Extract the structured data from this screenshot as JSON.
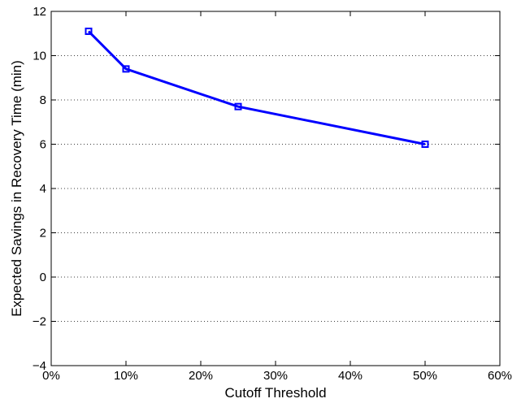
{
  "chart_data": {
    "type": "line",
    "title": "",
    "xlabel": "Cutoff Threshold",
    "ylabel": "Expected Savings in Recovery Time (min)",
    "xlim": [
      0,
      60
    ],
    "ylim": [
      -4,
      12
    ],
    "x_ticks": [
      0,
      10,
      20,
      30,
      40,
      50,
      60
    ],
    "x_tick_labels": [
      "0%",
      "10%",
      "20%",
      "30%",
      "40%",
      "50%",
      "60%"
    ],
    "y_ticks": [
      -4,
      -2,
      0,
      2,
      4,
      6,
      8,
      10,
      12
    ],
    "y_tick_labels": [
      "−4",
      "−2",
      "0",
      "2",
      "4",
      "6",
      "8",
      "10",
      "12"
    ],
    "grid": "horizontal-dotted",
    "series": [
      {
        "x": [
          5,
          10,
          25,
          50
        ],
        "y": [
          11.1,
          9.4,
          7.7,
          6.0
        ],
        "color": "#0000ff",
        "marker": "square"
      }
    ]
  }
}
